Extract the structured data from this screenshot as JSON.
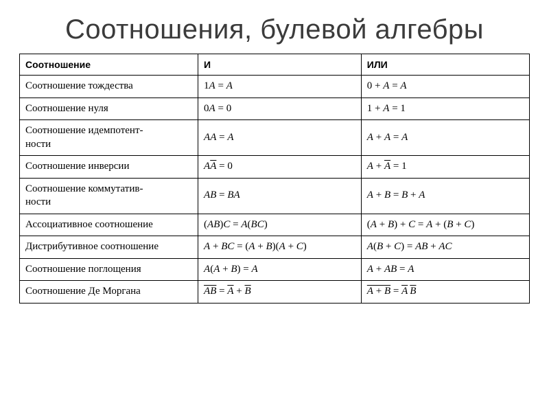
{
  "title": "Соотношения, булевой алгебры",
  "table": {
    "columns": [
      "Соотношение",
      "И",
      "ИЛИ"
    ],
    "col_widths_pct": [
      35,
      32,
      33
    ],
    "header_fontsize_pt": 11,
    "cell_fontsize_pt": 11,
    "border_color": "#000000",
    "background_color": "#ffffff",
    "text_color": "#000000",
    "font_family_header": "Arial",
    "font_family_body": "Times New Roman",
    "rows": [
      {
        "name": "Соотношение тождества",
        "and_html": "1<span class='it'>A</span> <span class='eq'>=</span> <span class='it'>A</span>",
        "or_html": "0 + <span class='it'>A</span> <span class='eq'>=</span> <span class='it'>A</span>"
      },
      {
        "name": "Соотношение нуля",
        "and_html": "0<span class='it'>A</span> <span class='eq'>=</span> 0",
        "or_html": "1 + <span class='it'>A</span> <span class='eq'>=</span> 1"
      },
      {
        "name": "Соотношение идемпотент-\nности",
        "and_html": "<span class='it'>AA</span> <span class='eq'>=</span> <span class='it'>A</span>",
        "or_html": "<span class='it'>A</span> + <span class='it'>A</span> <span class='eq'>=</span> <span class='it'>A</span>"
      },
      {
        "name": "Соотношение инверсии",
        "and_html": "<span class='it'>A</span><span class='it ov'>A</span> <span class='eq'>=</span> 0",
        "or_html": "<span class='it'>A</span> + <span class='it ov'>A</span> <span class='eq'>=</span> 1"
      },
      {
        "name": "Соотношение коммутатив-\nности",
        "and_html": "<span class='it'>AB</span> <span class='eq'>=</span> <span class='it'>BA</span>",
        "or_html": "<span class='it'>A</span> + <span class='it'>B</span> <span class='eq'>=</span> <span class='it'>B</span> + <span class='it'>A</span>"
      },
      {
        "name": "Ассоциативное соотношение",
        "and_html": "(<span class='it'>AB</span>)<span class='it'>C</span> <span class='eq'>=</span> <span class='it'>A</span>(<span class='it'>BC</span>)",
        "or_html": "(<span class='it'>A</span> + <span class='it'>B</span>) + <span class='it'>C</span> <span class='eq'>=</span> <span class='it'>A</span> + (<span class='it'>B</span> + <span class='it'>C</span>)"
      },
      {
        "name": "Дистрибутивное соотношение",
        "and_html": "<span class='it'>A</span> + <span class='it'>BC</span> <span class='eq'>=</span> (<span class='it'>A</span> + <span class='it'>B</span>)(<span class='it'>A</span> + <span class='it'>C</span>)",
        "or_html": "<span class='it'>A</span>(<span class='it'>B</span> + <span class='it'>C</span>) <span class='eq'>=</span> <span class='it'>AB</span> + <span class='it'>AC</span>"
      },
      {
        "name": "Соотношение поглощения",
        "and_html": "<span class='it'>A</span>(<span class='it'>A</span> + <span class='it'>B</span>) <span class='eq'>=</span> <span class='it'>A</span>",
        "or_html": "<span class='it'>A</span> + <span class='it'>AB</span> <span class='eq'>=</span> <span class='it'>A</span>"
      },
      {
        "name": "Соотношение Де Моргана",
        "and_html": "<span class='it ov'>AB</span> <span class='eq'>=</span> <span class='it ov'>A</span> + <span class='it ov'>B</span>",
        "or_html": "<span class='ov'><span class='it'>A</span> + <span class='it'>B</span></span> <span class='eq'>=</span> <span class='it ov'>A</span>&thinsp;<span class='it ov'>B</span>"
      }
    ]
  },
  "title_style": {
    "fontsize_pt": 30,
    "color": "#3b3b3b",
    "weight": "normal",
    "align": "center"
  }
}
